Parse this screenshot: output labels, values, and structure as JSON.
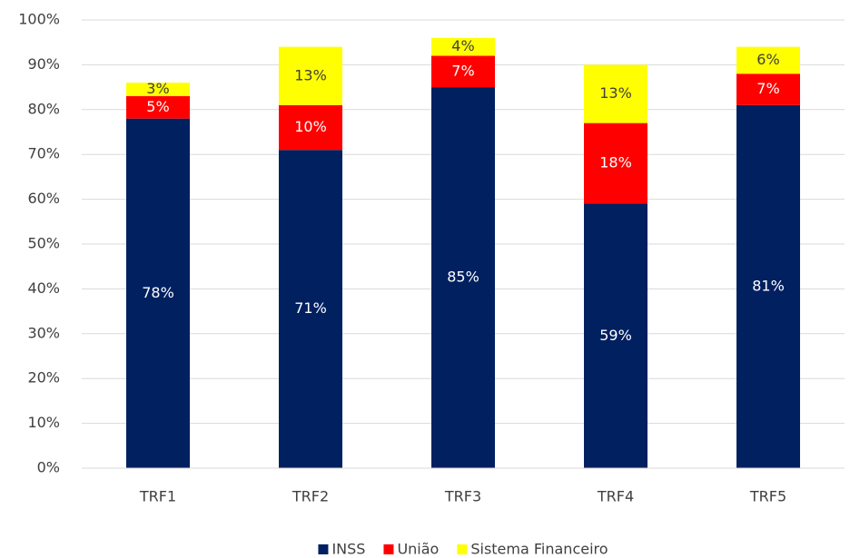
{
  "chart_data": {
    "type": "stacked_bar",
    "categories": [
      "TRF1",
      "TRF2",
      "TRF3",
      "TRF4",
      "TRF5"
    ],
    "series": [
      {
        "name": "INSS",
        "color": "#002060",
        "values": [
          78,
          71,
          85,
          59,
          81
        ],
        "value_labels": [
          "78%",
          "71%",
          "85%",
          "59%",
          "81%"
        ]
      },
      {
        "name": "União",
        "color": "#ff0000",
        "values": [
          5,
          10,
          7,
          18,
          7
        ],
        "value_labels": [
          "5%",
          "10%",
          "7%",
          "18%",
          "7%"
        ]
      },
      {
        "name": "Sistema Financeiro",
        "color": "#ffff00",
        "values": [
          3,
          13,
          4,
          13,
          6
        ],
        "value_labels": [
          "3%",
          "13%",
          "4%",
          "13%",
          "6%"
        ]
      }
    ],
    "ylim": [
      0,
      100
    ],
    "yticks": [
      {
        "value": 0,
        "label": "0%"
      },
      {
        "value": 10,
        "label": "10%"
      },
      {
        "value": 20,
        "label": "20%"
      },
      {
        "value": 30,
        "label": "30%"
      },
      {
        "value": 40,
        "label": "40%"
      },
      {
        "value": 50,
        "label": "50%"
      },
      {
        "value": 60,
        "label": "60%"
      },
      {
        "value": 70,
        "label": "70%"
      },
      {
        "value": 80,
        "label": "80%"
      },
      {
        "value": 90,
        "label": "90%"
      },
      {
        "value": 100,
        "label": "100%"
      }
    ],
    "grid": true,
    "legend": "bottom"
  }
}
